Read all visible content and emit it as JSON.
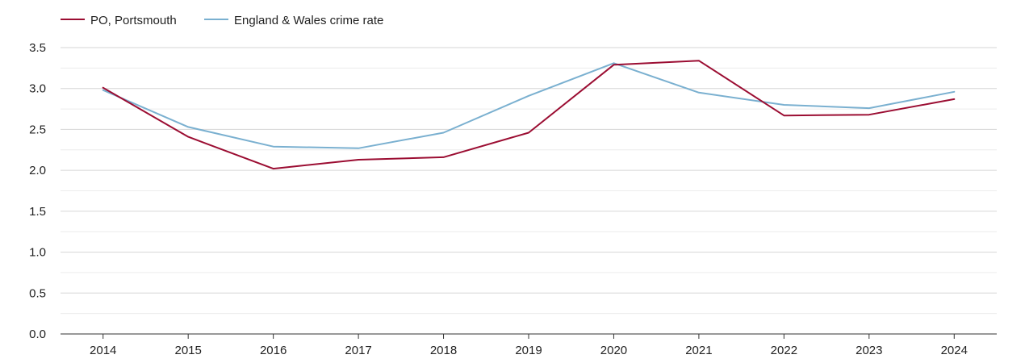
{
  "chart_data": {
    "type": "line",
    "title": "",
    "xlabel": "",
    "ylabel": "",
    "x": [
      "2014",
      "2015",
      "2016",
      "2017",
      "2018",
      "2019",
      "2020",
      "2021",
      "2022",
      "2023",
      "2024"
    ],
    "ylim": [
      0,
      3.5
    ],
    "y_ticks": [
      "0.0",
      "0.5",
      "1.0",
      "1.5",
      "2.0",
      "2.5",
      "3.0",
      "3.5"
    ],
    "grid": true,
    "legend_position": "top-left",
    "series": [
      {
        "name": "PO, Portsmouth",
        "color": "#9b0d32",
        "values": [
          3.01,
          2.41,
          2.02,
          2.13,
          2.16,
          2.46,
          3.29,
          3.34,
          2.67,
          2.68,
          2.87
        ]
      },
      {
        "name": "England & Wales crime rate",
        "color": "#7ab0d0",
        "values": [
          2.98,
          2.53,
          2.29,
          2.27,
          2.46,
          2.91,
          3.31,
          2.95,
          2.8,
          2.76,
          2.96
        ]
      }
    ]
  }
}
